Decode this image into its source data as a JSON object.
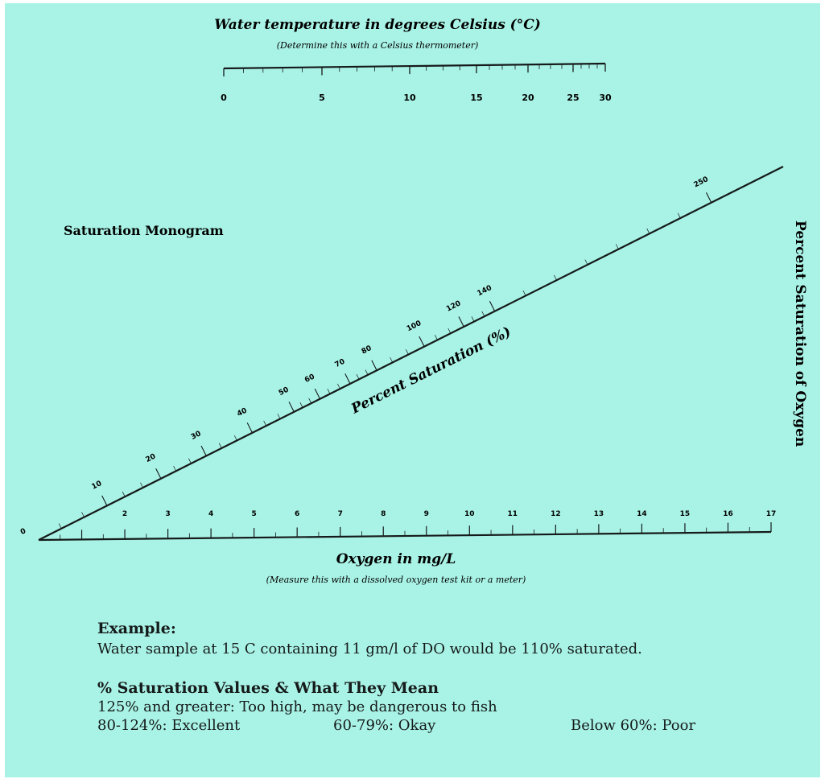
{
  "temperature_scale": {
    "title": "Water temperature in degrees Celsius (°C)",
    "note": "(Determine this with a Celsius thermometer)",
    "labels": [
      "0",
      "5",
      "10",
      "15",
      "20",
      "25",
      "30"
    ]
  },
  "saturation_scale": {
    "title": "Percent Saturation (%)",
    "labels": [
      "0",
      "10",
      "20",
      "30",
      "40",
      "50",
      "60",
      "70",
      "80",
      "100",
      "120",
      "140",
      "250"
    ]
  },
  "oxygen_scale": {
    "title": "Oxygen in mg/L",
    "note": "(Measure this with a dissolved oxygen test kit or a meter)",
    "labels": [
      "2",
      "3",
      "4",
      "5",
      "6",
      "7",
      "8",
      "9",
      "10",
      "11",
      "12",
      "13",
      "14",
      "15",
      "16",
      "17"
    ]
  },
  "nomogram_label": "Saturation Monogram",
  "side_title": "Percent Saturation of Oxygen",
  "example": {
    "heading": "Example:",
    "text": "Water sample at 15 C containing 11 gm/l of DO would be 110% saturated."
  },
  "values_section": {
    "heading": "% Saturation Values & What They Mean",
    "line1": "125% and greater:  Too high, may be dangerous to fish",
    "items": [
      "80-124%:  Excellent",
      "60-79%: Okay",
      "Below 60%:  Poor"
    ]
  },
  "colors": {
    "background": "#a9f3e6",
    "ink": "#151a1a"
  }
}
